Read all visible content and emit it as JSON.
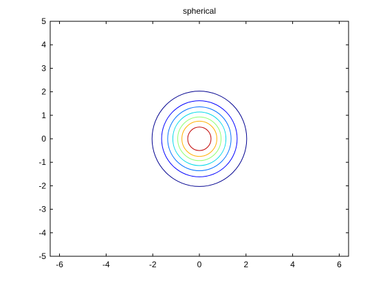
{
  "chart_data": {
    "type": "contour",
    "title": "spherical",
    "xlabel": "",
    "ylabel": "",
    "xlim": [
      -6.4,
      6.4
    ],
    "ylim": [
      -5,
      5
    ],
    "x_ticks": [
      -6,
      -4,
      -2,
      0,
      2,
      4,
      6
    ],
    "y_ticks": [
      -5,
      -4,
      -3,
      -2,
      -1,
      0,
      1,
      2,
      3,
      4,
      5
    ],
    "grid": false,
    "center": [
      0,
      0
    ],
    "contours": [
      {
        "radius": 2.03,
        "color": "#00008f"
      },
      {
        "radius": 1.62,
        "color": "#0000ff"
      },
      {
        "radius": 1.36,
        "color": "#0070ff"
      },
      {
        "radius": 1.14,
        "color": "#00d8e8"
      },
      {
        "radius": 0.93,
        "color": "#8fff70"
      },
      {
        "radius": 0.75,
        "color": "#ffb000"
      },
      {
        "radius": 0.5,
        "color": "#c00000"
      }
    ]
  }
}
